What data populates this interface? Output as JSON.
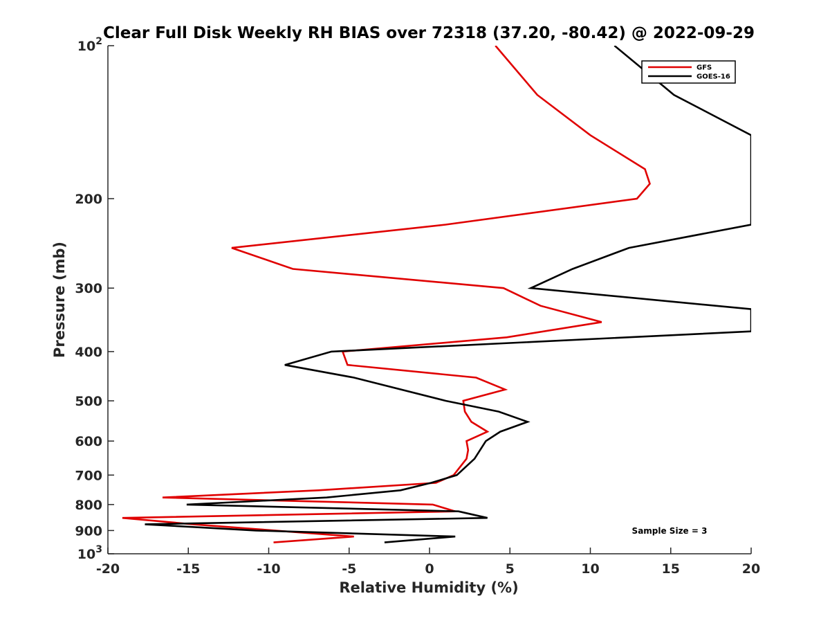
{
  "chart_data": {
    "type": "line",
    "title": "Clear Full Disk Weekly RH BIAS over 72318 (37.20, -80.42) @ 2022-09-29",
    "xlabel": "Relative Humidity (%)",
    "ylabel": "Pressure (mb)",
    "xlim": [
      -20,
      20
    ],
    "ylim": [
      100,
      1000
    ],
    "yscale": "log",
    "y_reversed": true,
    "grid": false,
    "legend_position": "top-right",
    "x_ticks": [
      -20,
      -15,
      -10,
      -5,
      0,
      5,
      10,
      15,
      20
    ],
    "x_tick_labels": [
      "-20",
      "-15",
      "-10",
      "-5",
      "0",
      "5",
      "10",
      "15",
      "20"
    ],
    "y_ticks": [
      100,
      200,
      300,
      400,
      500,
      600,
      700,
      800,
      900,
      1000
    ],
    "y_tick_labels": [
      {
        "text": "10",
        "sup": "2"
      },
      {
        "text": "200",
        "sup": ""
      },
      {
        "text": "300",
        "sup": ""
      },
      {
        "text": "400",
        "sup": ""
      },
      {
        "text": "500",
        "sup": ""
      },
      {
        "text": "600",
        "sup": ""
      },
      {
        "text": "700",
        "sup": ""
      },
      {
        "text": "800",
        "sup": ""
      },
      {
        "text": "900",
        "sup": ""
      },
      {
        "text": "10",
        "sup": "3"
      }
    ],
    "annotation": "Sample Size = 3",
    "series": [
      {
        "name": "GFS",
        "color": "#e00000",
        "points": [
          [
            4.1,
            100
          ],
          [
            6.7,
            125
          ],
          [
            10,
            150
          ],
          [
            13.4,
            175
          ],
          [
            13.7,
            187
          ],
          [
            12.9,
            200
          ],
          [
            1,
            225
          ],
          [
            -12.3,
            250
          ],
          [
            -8.5,
            275
          ],
          [
            4.6,
            300
          ],
          [
            6.9,
            325
          ],
          [
            10.7,
            350
          ],
          [
            4.8,
            375
          ],
          [
            -5.4,
            400
          ],
          [
            -5.1,
            425
          ],
          [
            2.9,
            450
          ],
          [
            4.7,
            475
          ],
          [
            2.1,
            500
          ],
          [
            2.2,
            525
          ],
          [
            2.6,
            550
          ],
          [
            3.6,
            575
          ],
          [
            2.3,
            600
          ],
          [
            2.4,
            625
          ],
          [
            2.3,
            650
          ],
          [
            1.5,
            700
          ],
          [
            0.4,
            725
          ],
          [
            -6.9,
            750
          ],
          [
            -16.6,
            775
          ],
          [
            0.2,
            800
          ],
          [
            1.6,
            825
          ],
          [
            -19.1,
            850
          ],
          [
            -14.7,
            875
          ],
          [
            -4.7,
            925
          ],
          [
            -9.7,
            950
          ]
        ]
      },
      {
        "name": "GOES-16",
        "color": "#000000",
        "points": [
          [
            11.5,
            100
          ],
          [
            15.2,
            125
          ],
          [
            20,
            150
          ],
          [
            20,
            225
          ],
          [
            12.4,
            250
          ],
          [
            8.9,
            275
          ],
          [
            6.3,
            300
          ],
          [
            20,
            330
          ],
          [
            20,
            365
          ],
          [
            -6.1,
            400
          ],
          [
            -9,
            425
          ],
          [
            -4.7,
            450
          ],
          [
            1,
            500
          ],
          [
            4.3,
            525
          ],
          [
            6.1,
            550
          ],
          [
            4.4,
            575
          ],
          [
            3.5,
            600
          ],
          [
            2.8,
            650
          ],
          [
            1.7,
            700
          ],
          [
            0.1,
            725
          ],
          [
            -1.8,
            750
          ],
          [
            -6.4,
            775
          ],
          [
            -15.1,
            800
          ],
          [
            1.8,
            825
          ],
          [
            3.6,
            850
          ],
          [
            -17.7,
            875
          ],
          [
            -10.8,
            900
          ],
          [
            1.6,
            925
          ],
          [
            -2.8,
            950
          ]
        ]
      }
    ]
  }
}
